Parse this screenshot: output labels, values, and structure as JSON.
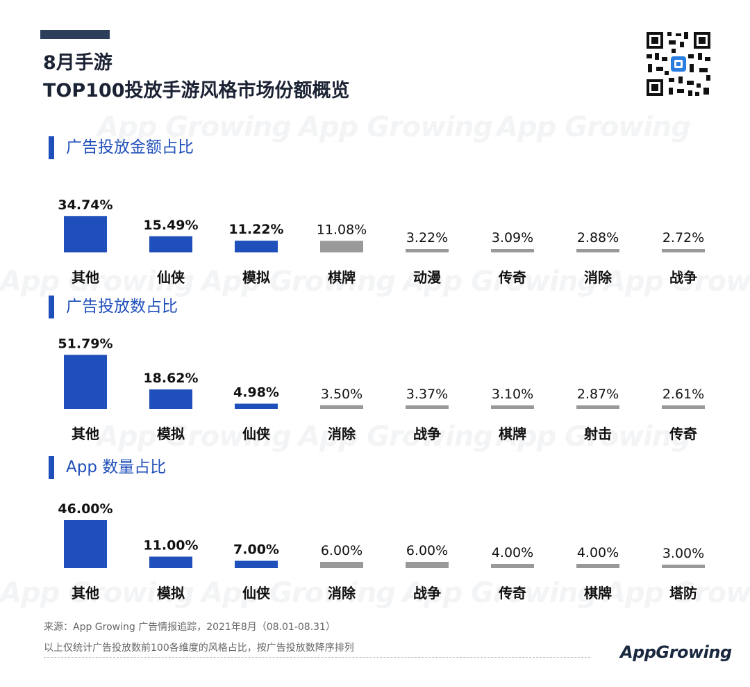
{
  "header": {
    "title_line1": "8月手游",
    "title_line2": "TOP100投放手游风格市场份额概览"
  },
  "watermark_text": "App Growing",
  "colors": {
    "highlight": "#1f4fba",
    "normal": "#999999",
    "accent_bar": "#2c3e5a"
  },
  "chart_data": [
    {
      "type": "bar",
      "title": "广告投放金额占比",
      "categories": [
        "其他",
        "仙侠",
        "模拟",
        "棋牌",
        "动漫",
        "传奇",
        "消除",
        "战争"
      ],
      "values": [
        34.74,
        15.49,
        11.22,
        11.08,
        3.22,
        3.09,
        2.88,
        2.72
      ],
      "labels": [
        "34.74%",
        "15.49%",
        "11.22%",
        "11.08%",
        "3.22%",
        "3.09%",
        "2.88%",
        "2.72%"
      ],
      "highlighted": [
        true,
        true,
        true,
        false,
        false,
        false,
        false,
        false
      ]
    },
    {
      "type": "bar",
      "title": "广告投放数占比",
      "categories": [
        "其他",
        "模拟",
        "仙侠",
        "消除",
        "战争",
        "棋牌",
        "射击",
        "传奇"
      ],
      "values": [
        51.79,
        18.62,
        4.98,
        3.5,
        3.37,
        3.1,
        2.87,
        2.61
      ],
      "labels": [
        "51.79%",
        "18.62%",
        "4.98%",
        "3.50%",
        "3.37%",
        "3.10%",
        "2.87%",
        "2.61%"
      ],
      "highlighted": [
        true,
        true,
        true,
        false,
        false,
        false,
        false,
        false
      ]
    },
    {
      "type": "bar",
      "title": "App 数量占比",
      "categories": [
        "其他",
        "模拟",
        "仙侠",
        "消除",
        "战争",
        "传奇",
        "棋牌",
        "塔防"
      ],
      "values": [
        46.0,
        11.0,
        7.0,
        6.0,
        6.0,
        4.0,
        4.0,
        3.0
      ],
      "labels": [
        "46.00%",
        "11.00%",
        "7.00%",
        "6.00%",
        "6.00%",
        "4.00%",
        "4.00%",
        "3.00%"
      ],
      "highlighted": [
        true,
        true,
        true,
        false,
        false,
        false,
        false,
        false
      ]
    }
  ],
  "footer": {
    "source": "来源：App Growing 广告情报追踪，2021年8月（08.01-08.31）",
    "note": "以上仅统计广告投放数前100各维度的风格占比，按广告投放数降序排列",
    "brand": "AppGrowing"
  }
}
